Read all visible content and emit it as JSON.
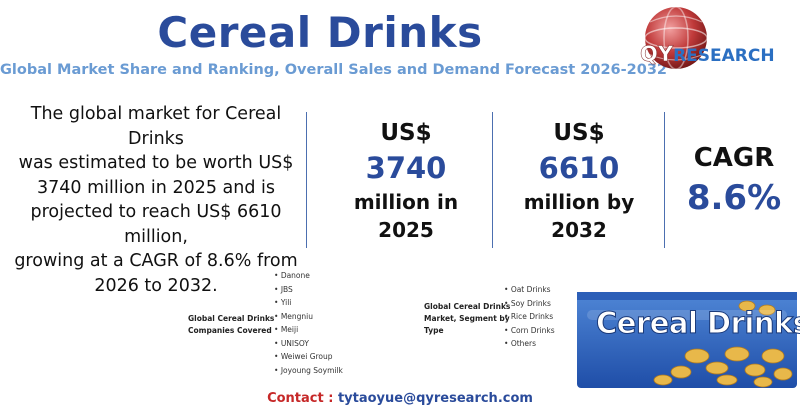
{
  "header": {
    "title": "Cereal Drinks",
    "subtitle": "Global Market Share and Ranking, Overall Sales and Demand Forecast 2026-2032"
  },
  "logo": {
    "qy": "QY",
    "research": "RESEARCH"
  },
  "summary": {
    "lines": [
      "The global market for Cereal Drinks",
      "was estimated to be worth US$",
      "3740 million in 2025 and is",
      "projected to reach US$ 6610 million,",
      "growing at a CAGR of 8.6% from",
      "2026 to 2032."
    ]
  },
  "stats": {
    "s2025": {
      "currency": "US$",
      "value": "3740",
      "tail1": "million in",
      "tail2": "2025"
    },
    "s2032": {
      "currency": "US$",
      "value": "6610",
      "tail1": "million by",
      "tail2": "2032"
    },
    "cagr": {
      "label": "CAGR",
      "value": "8.6%"
    }
  },
  "companies": {
    "label_line1": "Global Cereal Drinks",
    "label_line2": "Companies Covered",
    "items": [
      "Danone",
      "JBS",
      "Yili",
      "Mengniu",
      "Meiji",
      "UNISOY",
      "Weiwei Group",
      "Joyoung Soymilk"
    ]
  },
  "segments": {
    "label_line1": "Global Cereal Drinks",
    "label_line2": "Market, Segment by",
    "label_line3": "Type",
    "items": [
      "Oat Drinks",
      "Soy Drinks",
      "Rice Drinks",
      "Corn Drinks",
      "Others"
    ]
  },
  "product_image": {
    "label": "Cereal Drinks"
  },
  "contact": {
    "label": "Contact :",
    "email": "tytaoyue@qyresearch.com"
  },
  "colors": {
    "title_blue": "#2a4b9b",
    "subtitle_blue": "#6a9bd3",
    "contact_red": "#c62828"
  }
}
